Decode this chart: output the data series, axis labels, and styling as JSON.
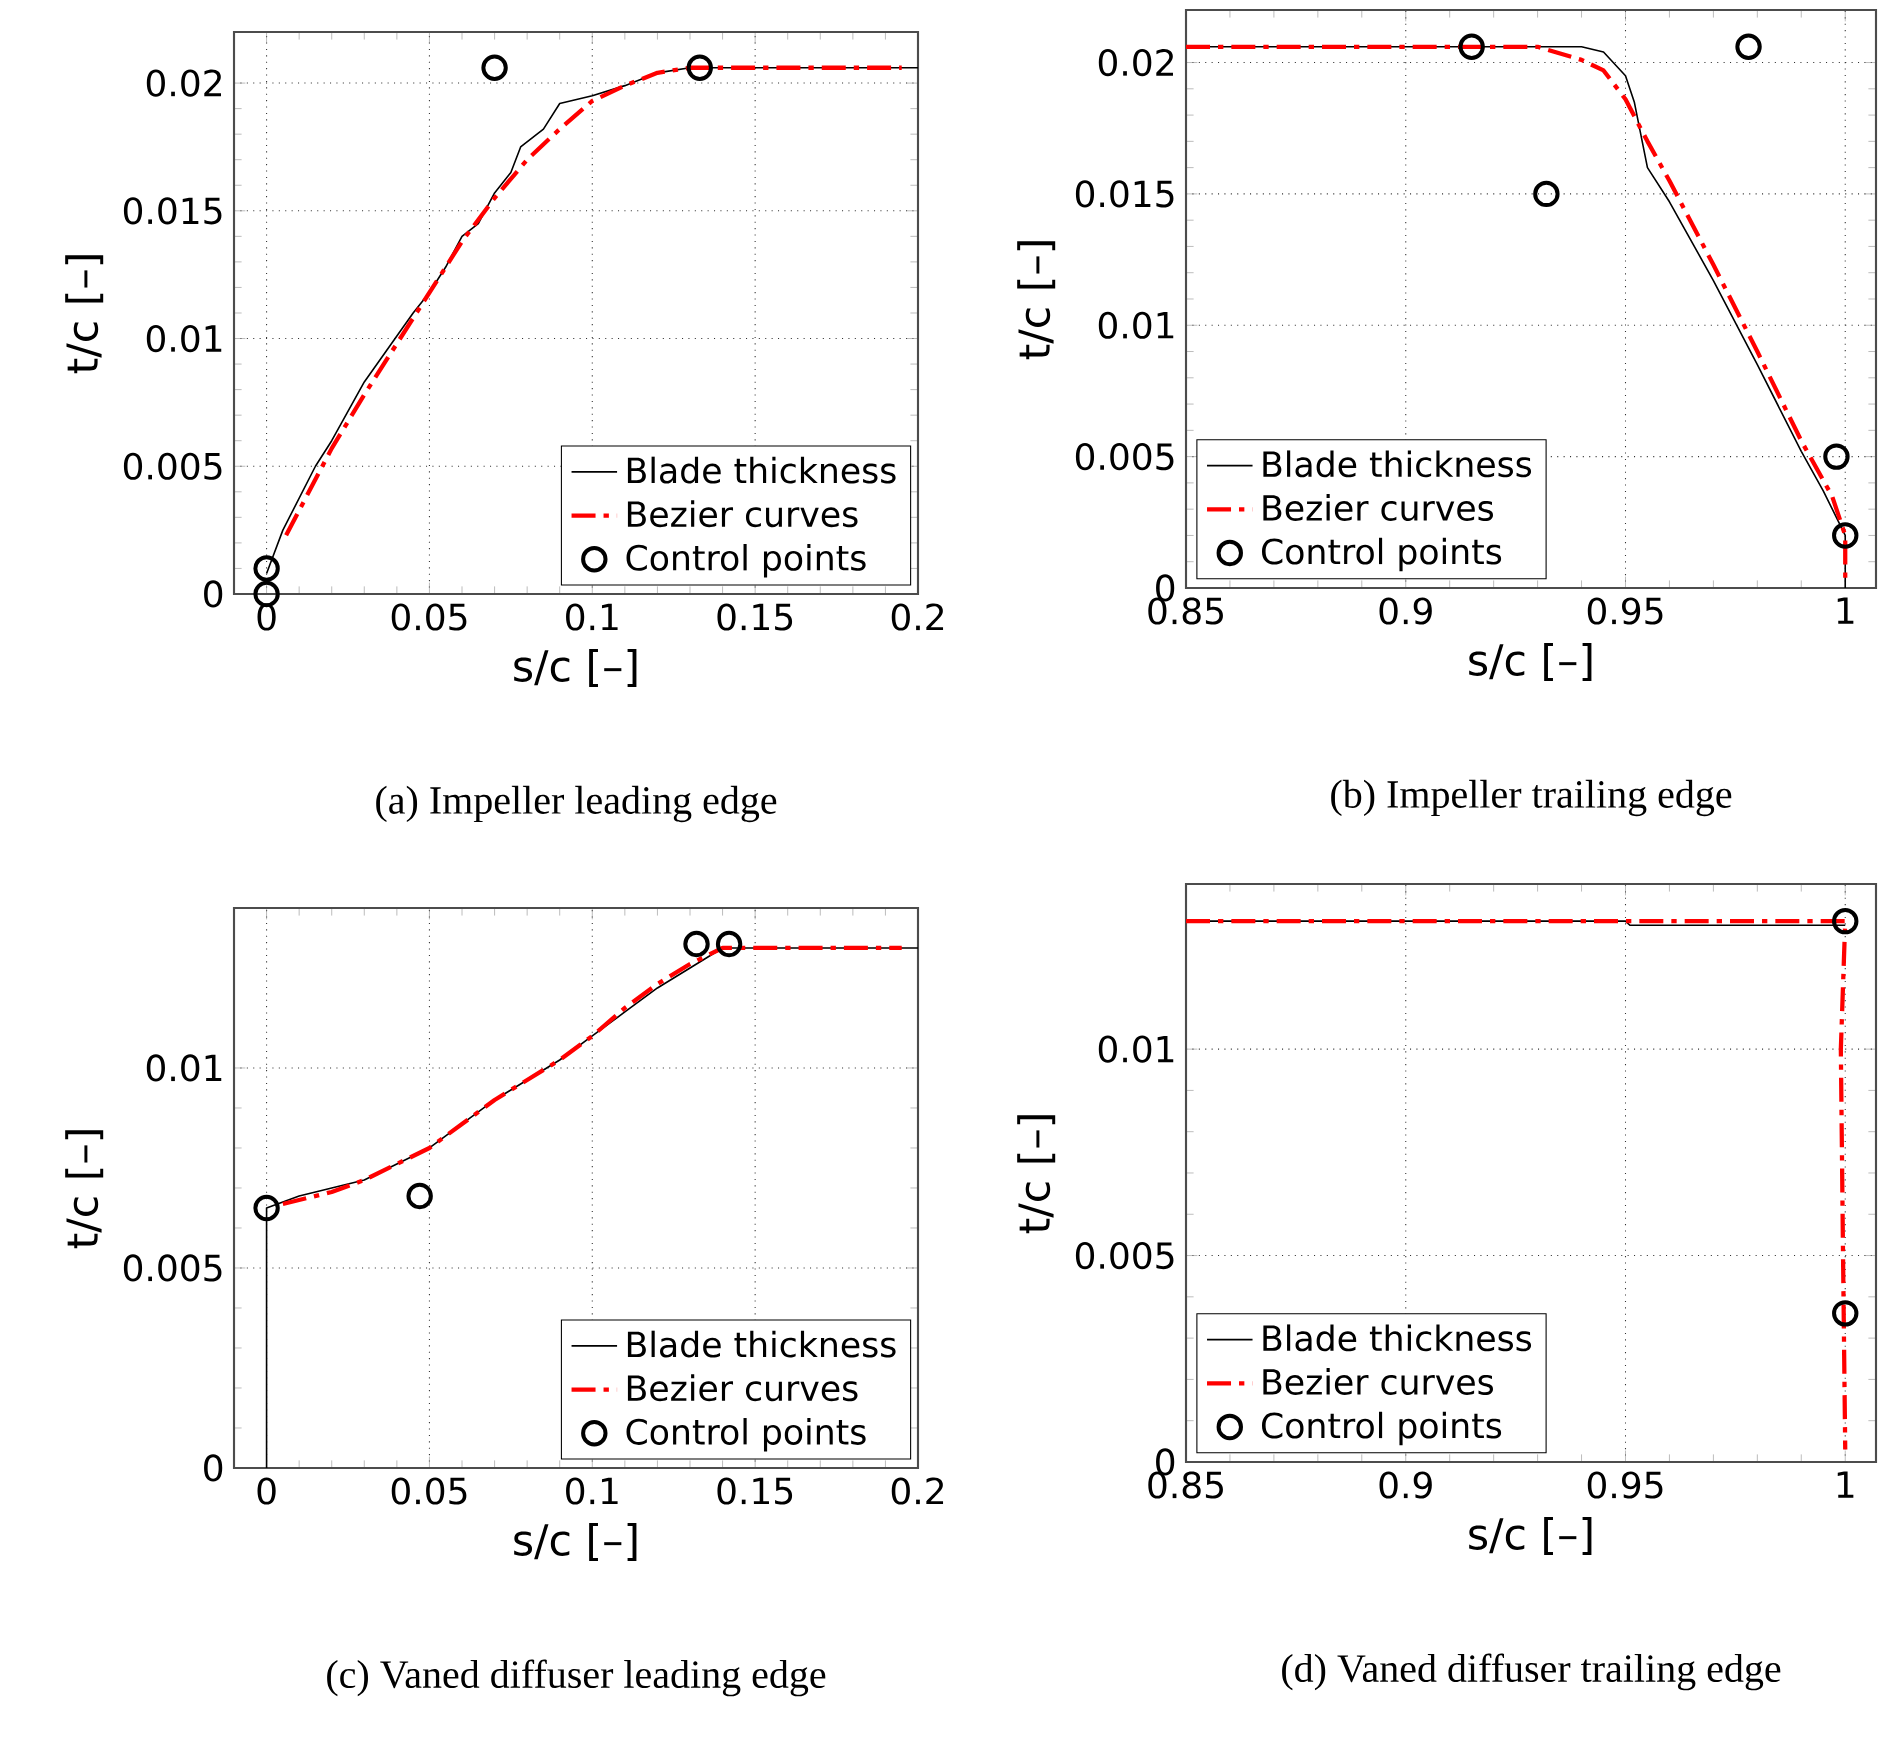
{
  "chart_data": [
    {
      "type": "line",
      "title": "(a) Impeller leading edge",
      "xlabel": "s/c [–]",
      "ylabel": "t/c [–]",
      "xlim": [
        -0.01,
        0.2
      ],
      "ylim": [
        0,
        0.022
      ],
      "xticks": [
        0,
        0.05,
        0.1,
        0.15,
        0.2
      ],
      "yticks": [
        0,
        0.005,
        0.01,
        0.015,
        0.02
      ],
      "grid": true,
      "legend": "bottom right",
      "series": [
        {
          "name": "Blade thickness",
          "type": "line",
          "color": "#000000",
          "line_style": "solid",
          "x": [
            0,
            0.005,
            0.015,
            0.02,
            0.03,
            0.04,
            0.045,
            0.05,
            0.055,
            0.06,
            0.065,
            0.07,
            0.075,
            0.078,
            0.085,
            0.09,
            0.1,
            0.11,
            0.12,
            0.13,
            0.2
          ],
          "values": [
            0.0008,
            0.0025,
            0.005,
            0.006,
            0.0083,
            0.0101,
            0.011,
            0.0118,
            0.0128,
            0.014,
            0.0145,
            0.0157,
            0.0165,
            0.0175,
            0.0182,
            0.0192,
            0.0195,
            0.0199,
            0.0204,
            0.0206,
            0.0206
          ]
        },
        {
          "name": "Bezier curves",
          "type": "line",
          "color": "#ff0000",
          "line_style": "dashed",
          "x": [
            0.006,
            0.02,
            0.03,
            0.04,
            0.05,
            0.06,
            0.07,
            0.08,
            0.09,
            0.1,
            0.11,
            0.12,
            0.13,
            0.195
          ],
          "values": [
            0.0023,
            0.0057,
            0.0078,
            0.0098,
            0.0118,
            0.0138,
            0.0155,
            0.017,
            0.0182,
            0.0193,
            0.0199,
            0.0204,
            0.0206,
            0.0206
          ]
        },
        {
          "name": "Control points",
          "type": "scatter",
          "color": "#000000",
          "marker": "circle",
          "x": [
            0,
            0,
            0.07,
            0.133
          ],
          "values": [
            0,
            0.001,
            0.0206,
            0.0206
          ]
        }
      ]
    },
    {
      "type": "line",
      "title": "(b) Impeller trailing edge",
      "xlabel": "s/c [–]",
      "ylabel": "t/c [–]",
      "xlim": [
        0.85,
        1.007
      ],
      "ylim": [
        0,
        0.022
      ],
      "xticks": [
        0.85,
        0.9,
        0.95,
        1
      ],
      "yticks": [
        0,
        0.005,
        0.01,
        0.015,
        0.02
      ],
      "grid": true,
      "legend": "bottom left",
      "series": [
        {
          "name": "Blade thickness",
          "type": "line",
          "color": "#000000",
          "line_style": "solid",
          "x": [
            0.85,
            0.94,
            0.945,
            0.95,
            0.952,
            0.955,
            0.96,
            0.97,
            0.98,
            0.99,
            0.995,
            1.0,
            1.0
          ],
          "values": [
            0.0206,
            0.0206,
            0.0204,
            0.0195,
            0.0185,
            0.016,
            0.0147,
            0.0117,
            0.0085,
            0.0052,
            0.0037,
            0.002,
            0
          ]
        },
        {
          "name": "Bezier curves",
          "type": "line",
          "color": "#ff0000",
          "line_style": "dashed",
          "x": [
            0.85,
            0.93,
            0.94,
            0.945,
            0.95,
            0.955,
            0.96,
            0.97,
            0.98,
            0.99,
            0.997,
            1.0,
            1.0
          ],
          "values": [
            0.0206,
            0.0206,
            0.0201,
            0.0197,
            0.0186,
            0.017,
            0.0155,
            0.0123,
            0.009,
            0.0056,
            0.0035,
            0.002,
            0.0003
          ]
        },
        {
          "name": "Control points",
          "type": "scatter",
          "color": "#000000",
          "marker": "circle",
          "x": [
            0.915,
            0.932,
            0.978,
            0.998,
            1.0
          ],
          "values": [
            0.0206,
            0.015,
            0.0206,
            0.005,
            0.002
          ]
        }
      ]
    },
    {
      "type": "line",
      "title": "(c) Vaned diffuser leading edge",
      "xlabel": "s/c [–]",
      "ylabel": "t/c [–]",
      "xlim": [
        -0.01,
        0.2
      ],
      "ylim": [
        0,
        0.014
      ],
      "xticks": [
        0,
        0.05,
        0.1,
        0.15,
        0.2
      ],
      "yticks": [
        0,
        0.005,
        0.01
      ],
      "grid": true,
      "legend": "bottom right",
      "series": [
        {
          "name": "Blade thickness",
          "type": "line",
          "color": "#000000",
          "line_style": "solid",
          "x": [
            0,
            0,
            0.01,
            0.02,
            0.03,
            0.04,
            0.05,
            0.06,
            0.07,
            0.08,
            0.09,
            0.1,
            0.11,
            0.12,
            0.13,
            0.14,
            0.2
          ],
          "values": [
            0,
            0.0065,
            0.0068,
            0.007,
            0.0072,
            0.0076,
            0.008,
            0.0086,
            0.0092,
            0.0097,
            0.0102,
            0.0108,
            0.0114,
            0.012,
            0.0125,
            0.013,
            0.013
          ]
        },
        {
          "name": "Bezier curves",
          "type": "line",
          "color": "#ff0000",
          "line_style": "dashed",
          "x": [
            0.005,
            0.02,
            0.03,
            0.04,
            0.05,
            0.06,
            0.07,
            0.08,
            0.09,
            0.1,
            0.11,
            0.12,
            0.13,
            0.14,
            0.195
          ],
          "values": [
            0.0066,
            0.0069,
            0.0072,
            0.0076,
            0.008,
            0.0086,
            0.0092,
            0.0097,
            0.0102,
            0.0108,
            0.0115,
            0.0121,
            0.0126,
            0.013,
            0.013
          ]
        },
        {
          "name": "Control points",
          "type": "scatter",
          "color": "#000000",
          "marker": "circle",
          "x": [
            0,
            0.047,
            0.132,
            0.142
          ],
          "values": [
            0.0065,
            0.0068,
            0.0131,
            0.0131
          ]
        }
      ]
    },
    {
      "type": "line",
      "title": "(d) Vaned diffuser trailing edge",
      "xlabel": "s/c [–]",
      "ylabel": "t/c [–]",
      "xlim": [
        0.85,
        1.007
      ],
      "ylim": [
        0,
        0.014
      ],
      "xticks": [
        0.85,
        0.9,
        0.95,
        1
      ],
      "yticks": [
        0,
        0.005,
        0.01
      ],
      "grid": true,
      "legend": "bottom left",
      "series": [
        {
          "name": "Blade thickness",
          "type": "line",
          "color": "#000000",
          "line_style": "solid",
          "x": [
            0.85,
            0.95,
            0.951,
            1.0
          ],
          "values": [
            0.0131,
            0.0131,
            0.013,
            0.013
          ]
        },
        {
          "name": "Bezier curves",
          "type": "line",
          "color": "#ff0000",
          "line_style": "dashed",
          "x": [
            0.85,
            1.0,
            0.999,
            0.9995,
            1.0
          ],
          "values": [
            0.0131,
            0.0131,
            0.01,
            0.005,
            0.0003
          ]
        },
        {
          "name": "Control points",
          "type": "scatter",
          "color": "#000000",
          "marker": "circle",
          "x": [
            1.0,
            1.0
          ],
          "values": [
            0.0131,
            0.0036
          ]
        }
      ]
    }
  ]
}
